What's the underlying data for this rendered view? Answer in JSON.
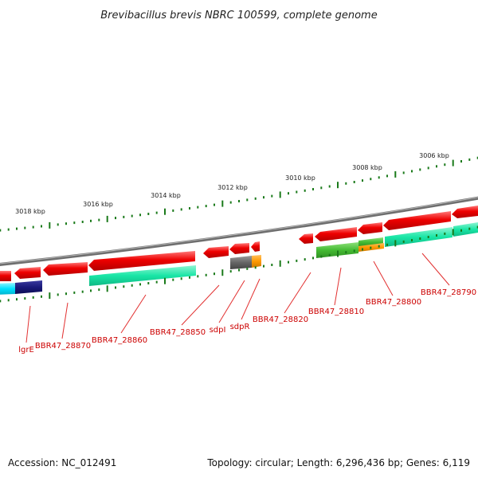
{
  "title": "Brevibacillus brevis NBRC 100599, complete genome",
  "footer": {
    "accession": "Accession: NC_012491",
    "summary": "Topology: circular; Length: 6,296,436 bp; Genes: 6,119"
  },
  "ruler_labels": [
    "3018 kbp",
    "3016 kbp",
    "3014 kbp",
    "3012 kbp",
    "3010 kbp",
    "3008 kbp",
    "3006 kbp"
  ],
  "gene_labels": [
    "lgrE",
    "BBR47_28870",
    "BBR47_28860",
    "BBR47_28850",
    "sdpI",
    "sdpR",
    "BBR47_28820",
    "BBR47_28810",
    "BBR47_28800",
    "BBR47_28790"
  ],
  "colors": {
    "backbone": "#8c8c8c",
    "gene_arrow": "#ee0000",
    "cds_teal": "#19e6a6",
    "cds_cyan": "#00e0ff",
    "cds_navy": "#1a1a7a",
    "cds_green": "#44bb33",
    "cds_orange": "#ff9900",
    "cds_gray": "#666666",
    "ruler_ticks": "#1a7a1a",
    "label_line": "#e23030"
  }
}
